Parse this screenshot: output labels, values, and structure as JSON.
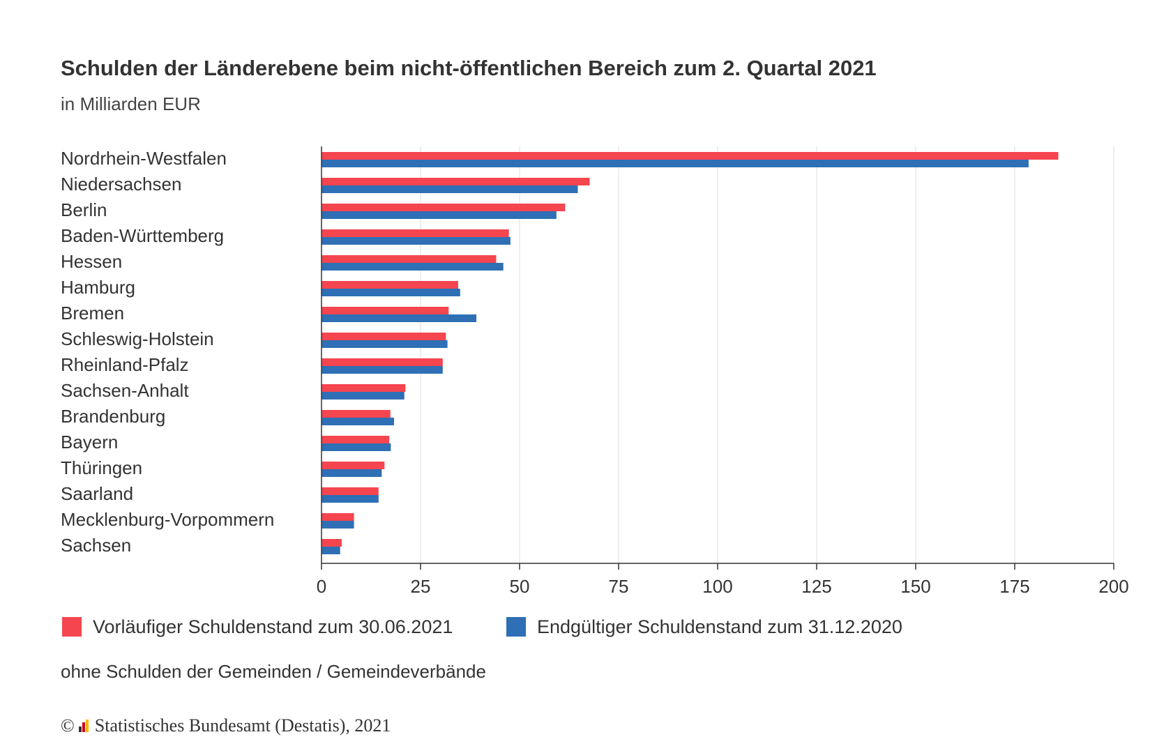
{
  "chart_data": {
    "type": "bar",
    "orientation": "horizontal",
    "title": "Schulden der Länderebene beim nicht-öffentlichen Bereich zum 2. Quartal 2021",
    "subtitle": "in Milliarden EUR",
    "categories": [
      "Nordrhein-Westfalen",
      "Niedersachsen",
      "Berlin",
      "Baden-Württemberg",
      "Hessen",
      "Hamburg",
      "Bremen",
      "Schleswig-Holstein",
      "Rheinland-Pfalz",
      "Sachsen-Anhalt",
      "Brandenburg",
      "Bayern",
      "Thüringen",
      "Saarland",
      "Mecklenburg-Vorpommern",
      "Sachsen"
    ],
    "series": [
      {
        "name": "Vorläufiger Schuldenstand zum 30.06.2021",
        "color": "#F5454F",
        "values": [
          186.0,
          67.7,
          61.5,
          47.3,
          44.1,
          34.5,
          32.1,
          31.4,
          30.6,
          21.2,
          17.4,
          17.1,
          15.9,
          14.4,
          8.2,
          5.1
        ]
      },
      {
        "name": "Endgültiger Schuldenstand zum 31.12.2020",
        "color": "#2E6FB5",
        "values": [
          178.5,
          64.7,
          59.3,
          47.7,
          45.9,
          35.0,
          39.1,
          31.8,
          30.6,
          20.9,
          18.3,
          17.5,
          15.2,
          14.4,
          8.2,
          4.7
        ]
      }
    ],
    "xlim": [
      0,
      200
    ],
    "ticks": [
      "0",
      "25",
      "50",
      "75",
      "100",
      "125",
      "150",
      "175",
      "200"
    ],
    "grid": true,
    "legend_position": "bottom-left"
  },
  "note": "ohne Schulden der Gemeinden / Gemeindeverbände",
  "credit": {
    "copyright_symbol": "©",
    "text": "Statistisches Bundesamt (Destatis), 2021"
  }
}
